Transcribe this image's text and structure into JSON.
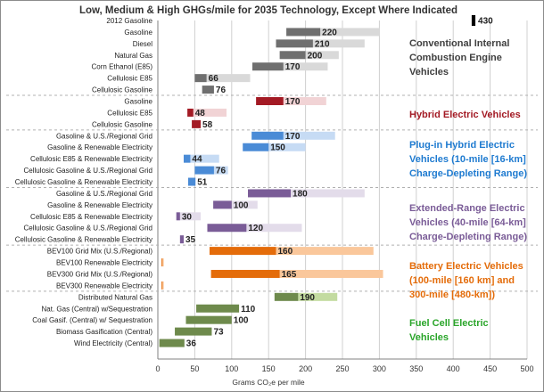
{
  "chart_data": {
    "type": "bar",
    "orientation": "horizontal",
    "title": "Low, Medium & High GHGs/mile for 2035 Technology, Except Where Indicated",
    "xlabel": "Grams CO₂e per mile",
    "xlim": [
      0,
      500
    ],
    "xticks": [
      0,
      50,
      100,
      150,
      200,
      250,
      300,
      350,
      400,
      450,
      500
    ],
    "grid": true,
    "colors": {
      "ice": [
        "#6f6f6f",
        "#a8a8a8",
        "#d9d9d9"
      ],
      "hev": [
        "#a31a24",
        "#e4a7ab",
        "#f1d3d5"
      ],
      "phev": [
        "#4a8bd6",
        "#8fb8ea",
        "#c6dbf4"
      ],
      "erev": [
        "#7a5c97",
        "#b7a5c9",
        "#e3dcea"
      ],
      "bev": [
        "#e46c0a",
        "#f5a35f",
        "#fac79b"
      ],
      "fcev": [
        "#6e8a4c",
        "#9cb57a",
        "#c3dba0"
      ],
      "single": "#000000"
    },
    "rows": [
      {
        "label": "2012 Gasoline",
        "group": "single",
        "low": 425,
        "medium": 430,
        "high": 430
      },
      {
        "label": "Gasoline",
        "group": "ice",
        "low": 174,
        "medium": 220,
        "high": 300
      },
      {
        "label": "Diesel",
        "group": "ice",
        "low": 160,
        "medium": 210,
        "high": 280
      },
      {
        "label": "Natural Gas",
        "group": "ice",
        "low": 165,
        "medium": 200,
        "high": 245
      },
      {
        "label": "Corn Ethanol (E85)",
        "group": "ice",
        "low": 128,
        "medium": 170,
        "high": 230
      },
      {
        "label": "Cellulosic E85",
        "group": "ice",
        "low": 50,
        "medium": 66,
        "high": 125
      },
      {
        "label": "Cellulosic Gasoline",
        "group": "ice",
        "low": 60,
        "medium": 76,
        "high": 76
      },
      {
        "label": "Gasoline",
        "group": "hev",
        "low": 133,
        "medium": 170,
        "high": 228
      },
      {
        "label": "Cellulosic E85",
        "group": "hev",
        "low": 40,
        "medium": 48,
        "high": 93
      },
      {
        "label": "Cellulosic Gasoline",
        "group": "hev",
        "low": 46,
        "medium": 58,
        "high": 58
      },
      {
        "label": "Gasoline & U.S./Regional Grid",
        "group": "phev",
        "low": 127,
        "medium": 170,
        "high": 240
      },
      {
        "label": "Gasoline & Renewable Electricity",
        "group": "phev",
        "low": 115,
        "medium": 150,
        "high": 200
      },
      {
        "label": "Cellulosic E85 & Renewable Electricity",
        "group": "phev",
        "low": 35,
        "medium": 44,
        "high": 83
      },
      {
        "label": "Cellulosic Gasoline & U.S./Regional Grid",
        "group": "phev",
        "low": 50,
        "medium": 76,
        "high": 95
      },
      {
        "label": "Cellulosic Gasoline & Renewable Electricity",
        "group": "phev",
        "low": 41,
        "medium": 51,
        "high": 51
      },
      {
        "label": "Gasoline & U.S./Regional Grid",
        "group": "erev",
        "low": 122,
        "medium": 180,
        "high": 280
      },
      {
        "label": "Gasoline & Renewable Electricity",
        "group": "erev",
        "low": 75,
        "medium": 100,
        "high": 135
      },
      {
        "label": "Cellulosic E85 & Renewable Electricity",
        "group": "erev",
        "low": 25,
        "medium": 30,
        "high": 58
      },
      {
        "label": "Cellulosic Gasoline & U.S./Regional Grid",
        "group": "erev",
        "low": 67,
        "medium": 120,
        "high": 195
      },
      {
        "label": "Cellulosic Gasoline & Renewable Electricity",
        "group": "erev",
        "low": 30,
        "medium": 35,
        "high": 35
      },
      {
        "label": "BEV100 Grid Mix (U.S./Regional)",
        "group": "bev",
        "low": 70,
        "medium": 160,
        "high": 292
      },
      {
        "label": "BEV100 Renewable Electricity",
        "group": "bev",
        "low": 5,
        "medium": 6,
        "high": 8
      },
      {
        "label": "BEV300 Grid Mix (U.S./Regional)",
        "group": "bev",
        "low": 72,
        "medium": 165,
        "high": 305
      },
      {
        "label": "BEV300 Renewable Electricity",
        "group": "bev",
        "low": 5,
        "medium": 6,
        "high": 8
      },
      {
        "label": "Distributed Natural Gas",
        "group": "fcev",
        "low": 158,
        "medium": 190,
        "high": 243
      },
      {
        "label": "Nat. Gas (Central) w/Sequestration",
        "group": "fcev",
        "low": 52,
        "medium": 110,
        "high": 110
      },
      {
        "label": "Coal Gasif. (Central) w/ Sequestration",
        "group": "fcev",
        "low": 38,
        "medium": 100,
        "high": 100
      },
      {
        "label": "Biomass Gasification (Central)",
        "group": "fcev",
        "low": 23,
        "medium": 73,
        "high": 73
      },
      {
        "label": "Wind Electricity (Central)",
        "group": "fcev",
        "low": 2,
        "medium": 36,
        "high": 36
      }
    ],
    "value_labels": [
      {
        "row": 0,
        "text": "430"
      },
      {
        "row": 1,
        "text": "220"
      },
      {
        "row": 2,
        "text": "210"
      },
      {
        "row": 3,
        "text": "200"
      },
      {
        "row": 4,
        "text": "170"
      },
      {
        "row": 5,
        "text": "66"
      },
      {
        "row": 6,
        "text": "76"
      },
      {
        "row": 7,
        "text": "170"
      },
      {
        "row": 8,
        "text": "48"
      },
      {
        "row": 9,
        "text": "58"
      },
      {
        "row": 10,
        "text": "170"
      },
      {
        "row": 11,
        "text": "150"
      },
      {
        "row": 12,
        "text": "44"
      },
      {
        "row": 13,
        "text": "76"
      },
      {
        "row": 14,
        "text": "51"
      },
      {
        "row": 15,
        "text": "180"
      },
      {
        "row": 16,
        "text": "100"
      },
      {
        "row": 17,
        "text": "30"
      },
      {
        "row": 18,
        "text": "120"
      },
      {
        "row": 19,
        "text": "35"
      },
      {
        "row": 20,
        "text": "160"
      },
      {
        "row": 22,
        "text": "165"
      },
      {
        "row": 24,
        "text": "190"
      },
      {
        "row": 25,
        "text": "110"
      },
      {
        "row": 26,
        "text": "100"
      },
      {
        "row": 27,
        "text": "73"
      },
      {
        "row": 28,
        "text": "36"
      }
    ],
    "group_separators_after_rows": [
      6,
      9,
      14,
      19,
      23
    ],
    "annotations": [
      {
        "group": "ice",
        "color": "#404040",
        "lines": [
          "Conventional Internal",
          "Combustion Engine",
          "Vehicles"
        ]
      },
      {
        "group": "hev",
        "color": "#a31a24",
        "lines": [
          "Hybrid Electric Vehicles"
        ]
      },
      {
        "group": "phev",
        "color": "#1f7bd0",
        "lines": [
          "Plug-in Hybrid Electric",
          "Vehicles (10-mile [16-km]",
          "Charge-Depleting Range)"
        ]
      },
      {
        "group": "erev",
        "color": "#7a5c97",
        "lines": [
          "Extended-Range Electric",
          "Vehicles (40-mile [64-km]",
          "Charge-Depleting Range)"
        ]
      },
      {
        "group": "bev",
        "color": "#e46c0a",
        "lines": [
          "Battery Electric Vehicles",
          "(100-mile [160 km] and",
          "300-mile [480-km])"
        ]
      },
      {
        "group": "fcev",
        "color": "#2aa52a",
        "lines": [
          "Fuel Cell Electric",
          "Vehicles"
        ]
      }
    ]
  }
}
